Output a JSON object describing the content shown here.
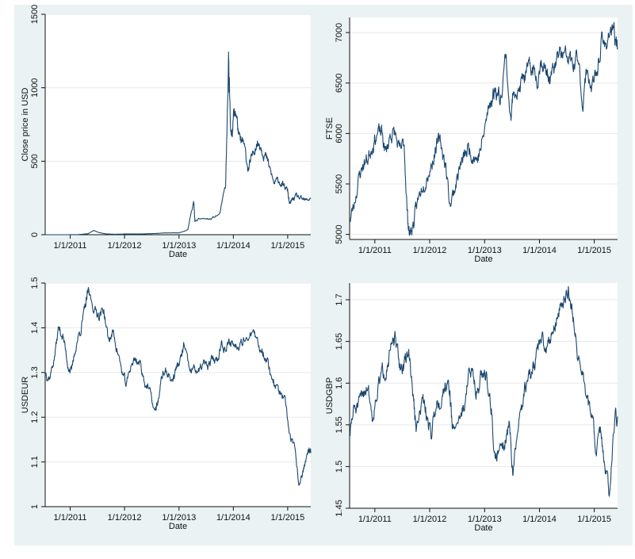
{
  "colors": {
    "series": "#1a476f",
    "panel_background": "#eaf2f3",
    "plot_background": "#ffffff",
    "grid": "#e8e8e8"
  },
  "chart_data": [
    {
      "id": "btc",
      "type": "line",
      "xlabel": "Date",
      "ylabel": "Close price in USD",
      "ylim": [
        0,
        1500
      ],
      "yticks": [
        0,
        500,
        1000,
        1500
      ],
      "ytick_labels": [
        "0",
        "500",
        "1000",
        "1500"
      ],
      "xticks": [
        "2011-01-01",
        "2012-01-01",
        "2013-01-01",
        "2014-01-01",
        "2015-01-01"
      ],
      "xtick_labels": [
        "1/1/2011",
        "1/1/2012",
        "1/1/2013",
        "1/1/2014",
        "1/1/2015"
      ],
      "xlim": [
        "2010-07-17",
        "2015-06-05"
      ],
      "grid": true,
      "series": [
        {
          "x": [
            "2010-07-17",
            "2010-10-01",
            "2011-01-01",
            "2011-03-01",
            "2011-05-01",
            "2011-06-08",
            "2011-07-15",
            "2011-09-01",
            "2011-11-01",
            "2012-01-01",
            "2012-04-01",
            "2012-07-01",
            "2012-10-01",
            "2013-01-01",
            "2013-03-01",
            "2013-04-09",
            "2013-04-18",
            "2013-06-01",
            "2013-08-01",
            "2013-10-01",
            "2013-11-10",
            "2013-11-30",
            "2013-12-05",
            "2013-12-18",
            "2014-01-01",
            "2014-01-15",
            "2014-02-15",
            "2014-03-10",
            "2014-04-10",
            "2014-05-01",
            "2014-06-01",
            "2014-07-01",
            "2014-08-01",
            "2014-09-01",
            "2014-10-01",
            "2014-11-01",
            "2014-12-01",
            "2015-01-01",
            "2015-01-14",
            "2015-02-01",
            "2015-03-01",
            "2015-04-01",
            "2015-05-01",
            "2015-06-05"
          ],
          "y": [
            0,
            0.1,
            0.3,
            0.9,
            7,
            30,
            14,
            5,
            3,
            5,
            5,
            7,
            12,
            13,
            35,
            230,
            90,
            110,
            105,
            140,
            330,
            1140,
            1000,
            650,
            800,
            850,
            620,
            620,
            450,
            500,
            630,
            620,
            550,
            450,
            350,
            370,
            330,
            300,
            200,
            240,
            260,
            240,
            230,
            250
          ]
        }
      ]
    },
    {
      "id": "ftse",
      "type": "line",
      "xlabel": "Date",
      "ylabel": "FTSE",
      "ylim": [
        4950,
        7150
      ],
      "yticks": [
        5000,
        5500,
        6000,
        6500,
        7000
      ],
      "ytick_labels": [
        "5000",
        "5500",
        "6000",
        "6500",
        "7000"
      ],
      "xticks": [
        "2011-01-01",
        "2012-01-01",
        "2013-01-01",
        "2014-01-01",
        "2015-01-01"
      ],
      "xtick_labels": [
        "1/1/2011",
        "1/1/2012",
        "1/1/2013",
        "1/1/2014",
        "1/1/2015"
      ],
      "xlim": [
        "2010-07-17",
        "2015-06-05"
      ],
      "grid": true,
      "series": [
        {
          "x": [
            "2010-07-20",
            "2010-08-15",
            "2010-09-15",
            "2010-10-15",
            "2010-11-15",
            "2010-12-15",
            "2011-01-15",
            "2011-02-15",
            "2011-03-15",
            "2011-04-15",
            "2011-05-15",
            "2011-06-15",
            "2011-07-15",
            "2011-08-05",
            "2011-08-20",
            "2011-09-15",
            "2011-10-10",
            "2011-11-15",
            "2011-12-15",
            "2012-01-15",
            "2012-02-15",
            "2012-03-15",
            "2012-04-15",
            "2012-05-15",
            "2012-06-15",
            "2012-07-15",
            "2012-08-15",
            "2012-09-15",
            "2012-10-15",
            "2012-11-15",
            "2012-12-15",
            "2013-01-15",
            "2013-02-15",
            "2013-03-15",
            "2013-04-15",
            "2013-05-22",
            "2013-06-24",
            "2013-07-15",
            "2013-08-15",
            "2013-09-15",
            "2013-10-15",
            "2013-11-15",
            "2013-12-15",
            "2014-01-15",
            "2014-02-15",
            "2014-03-15",
            "2014-04-15",
            "2014-05-15",
            "2014-06-15",
            "2014-07-15",
            "2014-08-15",
            "2014-09-15",
            "2014-10-15",
            "2014-11-15",
            "2014-12-15",
            "2015-01-15",
            "2015-02-15",
            "2015-03-15",
            "2015-04-15",
            "2015-05-15",
            "2015-06-05"
          ],
          "y": [
            5150,
            5300,
            5550,
            5700,
            5750,
            5900,
            6000,
            6000,
            5800,
            6000,
            6000,
            5800,
            5900,
            5200,
            5000,
            5100,
            5300,
            5500,
            5600,
            5700,
            5900,
            5900,
            5700,
            5300,
            5450,
            5650,
            5750,
            5850,
            5800,
            5750,
            5900,
            6150,
            6350,
            6450,
            6350,
            6800,
            6100,
            6500,
            6400,
            6550,
            6600,
            6650,
            6550,
            6750,
            6600,
            6550,
            6650,
            6800,
            6750,
            6750,
            6650,
            6750,
            6300,
            6650,
            6450,
            6550,
            6900,
            6850,
            7050,
            6950,
            6850
          ]
        }
      ]
    },
    {
      "id": "usdeur",
      "type": "line",
      "xlabel": "Date",
      "ylabel": "USDEUR",
      "ylim": [
        1.0,
        1.5
      ],
      "yticks": [
        1.0,
        1.1,
        1.2,
        1.3,
        1.4,
        1.5
      ],
      "ytick_labels": [
        "1",
        "1.1",
        "1.2",
        "1.3",
        "1.4",
        "1.5"
      ],
      "xticks": [
        "2011-01-01",
        "2012-01-01",
        "2013-01-01",
        "2014-01-01",
        "2015-01-01"
      ],
      "xtick_labels": [
        "1/1/2011",
        "1/1/2012",
        "1/1/2013",
        "1/1/2014",
        "1/1/2015"
      ],
      "xlim": [
        "2010-07-17",
        "2015-06-05"
      ],
      "grid": true,
      "series": [
        {
          "x": [
            "2010-07-20",
            "2010-08-15",
            "2010-09-15",
            "2010-10-15",
            "2010-11-15",
            "2010-12-15",
            "2011-01-10",
            "2011-02-15",
            "2011-03-15",
            "2011-04-15",
            "2011-05-03",
            "2011-06-15",
            "2011-07-15",
            "2011-08-15",
            "2011-09-15",
            "2011-10-15",
            "2011-11-15",
            "2011-12-15",
            "2012-01-13",
            "2012-02-15",
            "2012-03-15",
            "2012-04-15",
            "2012-05-15",
            "2012-06-15",
            "2012-07-24",
            "2012-08-15",
            "2012-09-15",
            "2012-10-15",
            "2012-11-15",
            "2012-12-15",
            "2013-01-15",
            "2013-02-01",
            "2013-03-15",
            "2013-04-15",
            "2013-05-15",
            "2013-06-15",
            "2013-07-15",
            "2013-08-15",
            "2013-09-15",
            "2013-10-15",
            "2013-11-15",
            "2013-12-15",
            "2014-01-15",
            "2014-02-15",
            "2014-03-15",
            "2014-05-08",
            "2014-06-15",
            "2014-07-15",
            "2014-08-15",
            "2014-09-15",
            "2014-10-15",
            "2014-11-15",
            "2014-12-15",
            "2015-01-15",
            "2015-02-15",
            "2015-03-16",
            "2015-04-15",
            "2015-05-15",
            "2015-06-05"
          ],
          "y": [
            1.3,
            1.29,
            1.33,
            1.4,
            1.38,
            1.32,
            1.3,
            1.37,
            1.4,
            1.45,
            1.48,
            1.44,
            1.43,
            1.44,
            1.37,
            1.39,
            1.35,
            1.3,
            1.27,
            1.32,
            1.33,
            1.32,
            1.28,
            1.26,
            1.21,
            1.24,
            1.3,
            1.3,
            1.28,
            1.31,
            1.33,
            1.36,
            1.3,
            1.31,
            1.3,
            1.32,
            1.31,
            1.33,
            1.33,
            1.37,
            1.35,
            1.37,
            1.36,
            1.37,
            1.38,
            1.39,
            1.36,
            1.35,
            1.33,
            1.29,
            1.27,
            1.25,
            1.23,
            1.16,
            1.13,
            1.05,
            1.08,
            1.12,
            1.12
          ]
        }
      ]
    },
    {
      "id": "usdgbp",
      "type": "line",
      "xlabel": "Date",
      "ylabel": "USDGBP",
      "ylim": [
        1.45,
        1.72
      ],
      "yticks": [
        1.45,
        1.5,
        1.55,
        1.6,
        1.65,
        1.7
      ],
      "ytick_labels": [
        "1.45",
        "1.5",
        "1.55",
        "1.6",
        "1.65",
        "1.7"
      ],
      "xticks": [
        "2011-01-01",
        "2012-01-01",
        "2013-01-01",
        "2014-01-01",
        "2015-01-01"
      ],
      "xtick_labels": [
        "1/1/2011",
        "1/1/2012",
        "1/1/2013",
        "1/1/2014",
        "1/1/2015"
      ],
      "xlim": [
        "2010-07-17",
        "2015-06-05"
      ],
      "grid": true,
      "series": [
        {
          "x": [
            "2010-07-20",
            "2010-08-15",
            "2010-09-15",
            "2010-10-15",
            "2010-11-15",
            "2010-12-15",
            "2011-01-15",
            "2011-02-15",
            "2011-03-15",
            "2011-04-15",
            "2011-05-15",
            "2011-06-15",
            "2011-07-15",
            "2011-08-15",
            "2011-09-15",
            "2011-10-03",
            "2011-11-15",
            "2011-12-15",
            "2012-01-13",
            "2012-02-15",
            "2012-03-15",
            "2012-04-15",
            "2012-05-15",
            "2012-06-01",
            "2012-07-15",
            "2012-08-15",
            "2012-09-15",
            "2012-10-15",
            "2012-11-15",
            "2012-12-15",
            "2013-01-15",
            "2013-02-15",
            "2013-03-12",
            "2013-04-15",
            "2013-05-15",
            "2013-06-15",
            "2013-07-09",
            "2013-08-15",
            "2013-09-15",
            "2013-10-15",
            "2013-11-15",
            "2013-12-15",
            "2014-01-15",
            "2014-02-15",
            "2014-03-15",
            "2014-04-15",
            "2014-05-15",
            "2014-06-15",
            "2014-07-15",
            "2014-08-15",
            "2014-09-15",
            "2014-10-15",
            "2014-11-15",
            "2014-12-15",
            "2015-01-15",
            "2015-02-15",
            "2015-03-15",
            "2015-04-13",
            "2015-05-15",
            "2015-06-05"
          ],
          "y": [
            1.54,
            1.57,
            1.57,
            1.59,
            1.6,
            1.56,
            1.59,
            1.61,
            1.62,
            1.64,
            1.65,
            1.62,
            1.62,
            1.64,
            1.58,
            1.54,
            1.58,
            1.56,
            1.54,
            1.58,
            1.58,
            1.6,
            1.59,
            1.54,
            1.56,
            1.57,
            1.61,
            1.61,
            1.59,
            1.61,
            1.61,
            1.57,
            1.5,
            1.53,
            1.53,
            1.55,
            1.49,
            1.55,
            1.58,
            1.61,
            1.61,
            1.64,
            1.65,
            1.64,
            1.66,
            1.67,
            1.69,
            1.7,
            1.71,
            1.68,
            1.63,
            1.61,
            1.58,
            1.56,
            1.52,
            1.54,
            1.49,
            1.47,
            1.55,
            1.56
          ]
        }
      ]
    }
  ]
}
